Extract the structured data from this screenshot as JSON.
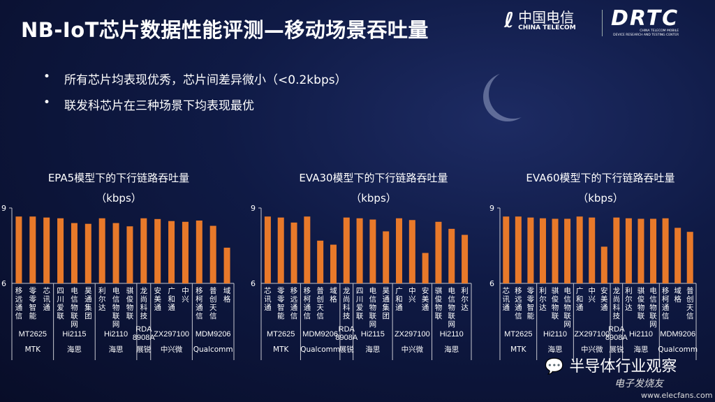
{
  "title": "NB-IoT芯片数据性能评测—移动场景吞吐量",
  "logos": {
    "china_telecom_cn": "中国电信",
    "china_telecom_en": "CHINA TELECOM",
    "drtc": "DRTC",
    "drtc_sub1": "CHINA TELECOM MOBILE",
    "drtc_sub2": "DEVICE RESEARCH AND TESTING CENTER"
  },
  "bullets": [
    "所有芯片均表现优秀，芯片间差异微小（<0.2kbps）",
    "联发科芯片在三种场景下均表现最优"
  ],
  "bullet_mark": "•",
  "watermark": {
    "text": "半导体行业观察",
    "site_cn": "电子发烧友",
    "site_url": "www.elecfans.com"
  },
  "colors": {
    "bar": "#e8792a",
    "axis": "#c8c8d0"
  },
  "chart_data": [
    {
      "type": "bar",
      "title": "EPA5模型下的下行链路吞吐量",
      "unit": "（kbps）",
      "ylim": [
        6,
        9
      ],
      "yticks": [
        "6",
        "9"
      ],
      "categories": [
        "移远通信",
        "零零智能",
        "芯讯通",
        "四川爱联",
        "电信物联网",
        "昊通集团",
        "利尔达",
        "电信物联网",
        "骐俊物联",
        "龙尚科技",
        "安美通",
        "广和通",
        "中兴",
        "移柯通信",
        "普创天信",
        "域格"
      ],
      "values": [
        8.66,
        8.66,
        8.62,
        8.59,
        8.4,
        8.37,
        8.59,
        8.4,
        8.27,
        8.59,
        8.56,
        8.48,
        8.45,
        8.5,
        8.29,
        7.42
      ],
      "groups": [
        {
          "chip": "MT2625",
          "vendor": "MTK",
          "count": 3
        },
        {
          "chip": "Hi2115",
          "vendor": "海思",
          "count": 3
        },
        {
          "chip": "Hi2110",
          "vendor": "海思",
          "count": 3
        },
        {
          "chip": "RDA8908A",
          "vendor": "展锐",
          "count": 1
        },
        {
          "chip": "ZX297100",
          "vendor": "中兴微",
          "count": 3
        },
        {
          "chip": "MDM9206",
          "vendor": "Qualcomm",
          "count": 3
        }
      ]
    },
    {
      "type": "bar",
      "title": "EVA30模型下的下行链路吞吐量",
      "unit": "（kbps）",
      "ylim": [
        6,
        9
      ],
      "yticks": [
        "6",
        "9"
      ],
      "categories": [
        "芯讯通",
        "零零智能",
        "移远通信",
        "移柯通信",
        "普创天信",
        "域格",
        "龙尚科技",
        "四川爱联",
        "电信物联网",
        "昊通集团",
        "广和通",
        "中兴",
        "安美通",
        "骐俊物联",
        "电信物联网",
        "利尔达"
      ],
      "values": [
        8.66,
        8.62,
        8.42,
        8.66,
        7.7,
        7.54,
        8.62,
        8.59,
        8.54,
        8.07,
        8.59,
        8.52,
        7.21,
        8.45,
        8.17,
        7.93
      ],
      "groups": [
        {
          "chip": "MT2625",
          "vendor": "MTK",
          "count": 3
        },
        {
          "chip": "MDM9206",
          "vendor": "Qualcomm",
          "count": 3
        },
        {
          "chip": "RDA8908A",
          "vendor": "展锐",
          "count": 1
        },
        {
          "chip": "Hi2115",
          "vendor": "海思",
          "count": 3
        },
        {
          "chip": "ZX297100",
          "vendor": "中兴微",
          "count": 3
        },
        {
          "chip": "Hi2110",
          "vendor": "海思",
          "count": 3
        }
      ]
    },
    {
      "type": "bar",
      "title": "EVA60模型下的下行链路吞吐量",
      "unit": "（kbps）",
      "ylim": [
        6,
        9
      ],
      "yticks": [
        "6",
        "9"
      ],
      "categories": [
        "芯讯通",
        "移远通信",
        "零零智能",
        "利尔达",
        "骐俊物联",
        "电信物联网",
        "广和通",
        "中兴",
        "安美通",
        "龙尚科技",
        "利尔达",
        "骐俊物联",
        "电信物联网",
        "移柯通信",
        "域格",
        "普创天信"
      ],
      "values": [
        8.66,
        8.66,
        8.62,
        8.59,
        8.57,
        8.57,
        8.66,
        8.62,
        7.46,
        8.62,
        8.59,
        8.57,
        8.57,
        8.59,
        8.21,
        8.05
      ],
      "groups": [
        {
          "chip": "MT2625",
          "vendor": "MTK",
          "count": 3
        },
        {
          "chip": "Hi2110",
          "vendor": "海思",
          "count": 3
        },
        {
          "chip": "ZX297100",
          "vendor": "中兴微",
          "count": 3
        },
        {
          "chip": "RDA8908A",
          "vendor": "展锐",
          "count": 1
        },
        {
          "chip": "Hi2110",
          "vendor": "海思",
          "count": 3
        },
        {
          "chip": "MDM9206",
          "vendor": "Qualcomm",
          "count": 3
        }
      ]
    }
  ]
}
